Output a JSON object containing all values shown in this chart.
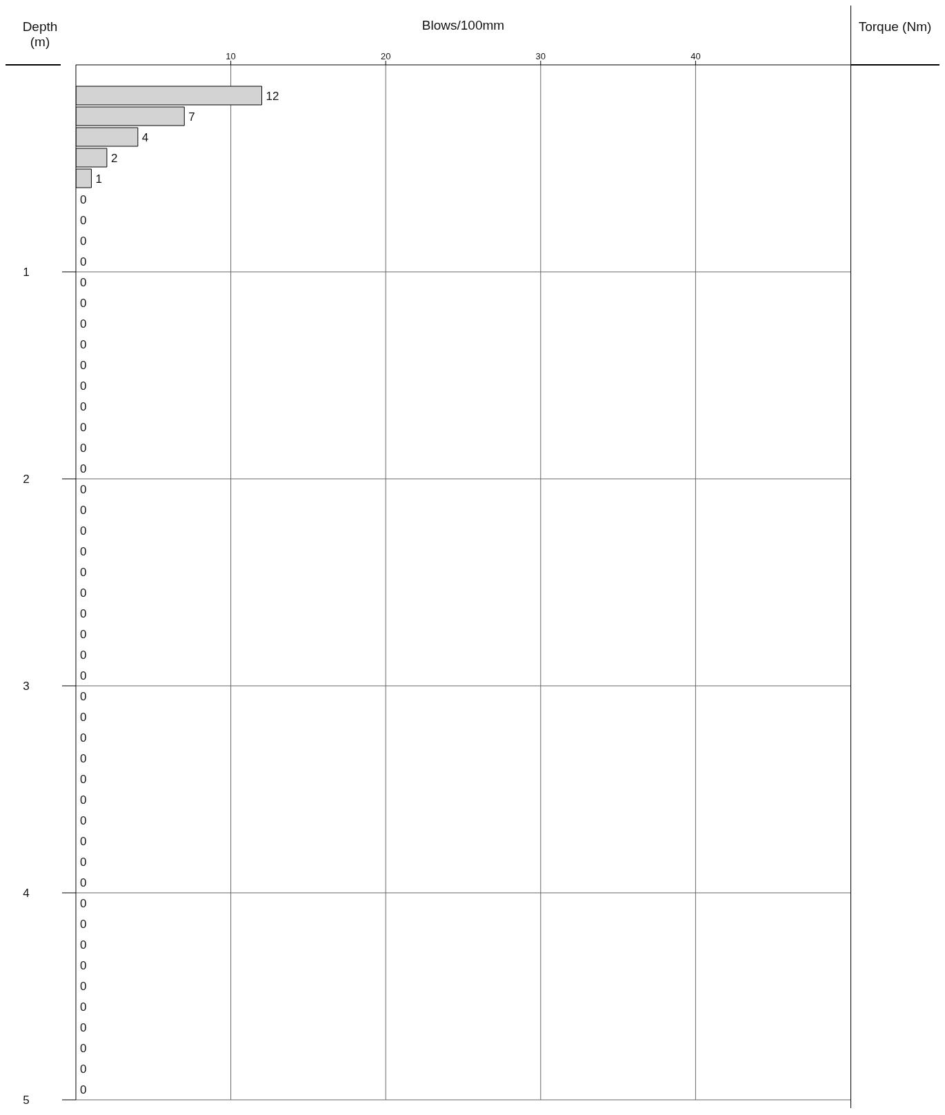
{
  "chart_data": {
    "type": "bar",
    "orientation": "horizontal",
    "xlabel": "Blows/100mm",
    "ylabel": "Depth (m)",
    "y2label": "Torque (Nm)",
    "x": [
      0.15,
      0.25,
      0.35,
      0.45,
      0.55,
      0.65,
      0.75,
      0.85,
      0.95,
      1.05,
      1.15,
      1.25,
      1.35,
      1.45,
      1.55,
      1.65,
      1.75,
      1.85,
      1.95,
      2.05,
      2.15,
      2.25,
      2.35,
      2.45,
      2.55,
      2.65,
      2.75,
      2.85,
      2.95,
      3.05,
      3.15,
      3.25,
      3.35,
      3.45,
      3.55,
      3.65,
      3.75,
      3.85,
      3.95,
      4.05,
      4.15,
      4.25,
      4.35,
      4.45,
      4.55,
      4.65,
      4.75,
      4.85,
      4.95
    ],
    "values": [
      12,
      7,
      4,
      2,
      1,
      0,
      0,
      0,
      0,
      0,
      0,
      0,
      0,
      0,
      0,
      0,
      0,
      0,
      0,
      0,
      0,
      0,
      0,
      0,
      0,
      0,
      0,
      0,
      0,
      0,
      0,
      0,
      0,
      0,
      0,
      0,
      0,
      0,
      0,
      0,
      0,
      0,
      0,
      0,
      0,
      0,
      0,
      0,
      0
    ],
    "color": "#d3d3d3",
    "data_labels": true,
    "grid": true,
    "xlim": [
      0,
      50
    ],
    "xticks": [
      10,
      20,
      30,
      40
    ],
    "ylim": [
      5,
      0
    ],
    "yticks": [
      1,
      2,
      3,
      4,
      5
    ]
  }
}
